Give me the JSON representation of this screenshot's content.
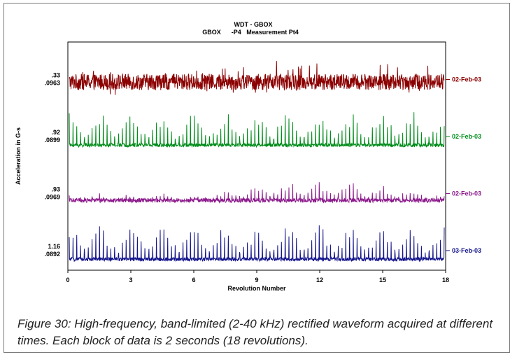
{
  "chart_data": {
    "type": "line",
    "title": "WDT  - GBOX",
    "subtitle": "GBOX      -P4   Measurement Pt4",
    "xlabel": "Revolution Number",
    "ylabel": "Acceleration in G-s",
    "xlim": [
      0,
      18
    ],
    "x_ticks": [
      "0",
      "3",
      "6",
      "9",
      "12",
      "15",
      "18"
    ],
    "grid": false,
    "series": [
      {
        "name": "02-Feb-03",
        "color": "#8b0000",
        "scale_max": ".33",
        "scale_offset": ".0963",
        "pattern": "noise"
      },
      {
        "name": "02-Feb-03",
        "color": "#008c1a",
        "scale_max": ".92",
        "scale_offset": ".0899",
        "pattern": "spikes"
      },
      {
        "name": "02-Feb-03",
        "color": "#8c1a8c",
        "scale_max": ".93",
        "scale_offset": ".0969",
        "pattern": "growing-spikes"
      },
      {
        "name": "03-Feb-03",
        "color": "#14148c",
        "scale_max": "1.16",
        "scale_offset": ".0892",
        "pattern": "spikes"
      }
    ]
  },
  "caption": "Figure 30:  High-frequency, band-limited (2-40 kHz) rectified waveform acquired at different times. Each block of data is 2 seconds (18 revolutions)."
}
